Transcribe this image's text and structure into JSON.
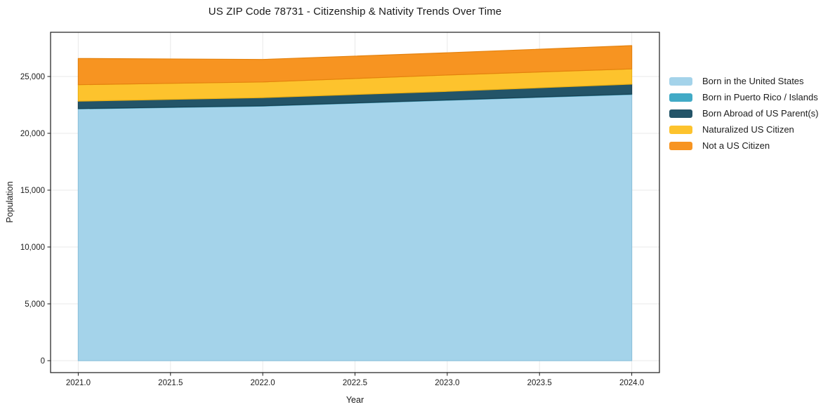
{
  "chart_data": {
    "type": "area",
    "stacked": true,
    "title": "US ZIP Code 78731 - Citizenship & Nativity Trends Over Time",
    "xlabel": "Year",
    "ylabel": "Population",
    "x": [
      2021,
      2022,
      2023,
      2024
    ],
    "series": [
      {
        "name": "Born in the United States",
        "color": "#a4d3ea",
        "edge_color": "#8ec2dc",
        "values": [
          22150,
          22390,
          22910,
          23420
        ]
      },
      {
        "name": "Born in Puerto Rico / Islands",
        "color": "#41aac6",
        "edge_color": "#3795b0",
        "values": [
          30,
          30,
          30,
          40
        ]
      },
      {
        "name": "Born Abroad of US Parent(s)",
        "color": "#235468",
        "edge_color": "#1a4253",
        "values": [
          650,
          720,
          750,
          870
        ]
      },
      {
        "name": "Naturalized US Citizen",
        "color": "#fdc32d",
        "edge_color": "#edb012",
        "values": [
          1450,
          1380,
          1440,
          1340
        ]
      },
      {
        "name": "Not a US Citizen",
        "color": "#f79421",
        "edge_color": "#e5820e",
        "values": [
          2310,
          1980,
          1960,
          2050
        ]
      }
    ],
    "xlim": [
      2020.85,
      2024.15
    ],
    "ylim": [
      -1050,
      28890
    ],
    "xticks": [
      2021.0,
      2021.5,
      2022.0,
      2022.5,
      2023.0,
      2023.5,
      2024.0
    ],
    "xtick_labels": [
      "2021.0",
      "2021.5",
      "2022.0",
      "2022.5",
      "2023.0",
      "2023.5",
      "2024.0"
    ],
    "yticks": [
      0,
      5000,
      10000,
      15000,
      20000,
      25000
    ],
    "ytick_labels": [
      "0",
      "5,000",
      "10,000",
      "15,000",
      "20,000",
      "25,000"
    ],
    "grid": true,
    "legend_position": "right"
  },
  "colors": {
    "background": "#ffffff",
    "grid": "#e9e9e9",
    "spine": "#1a1a1a",
    "tick_text": "#1c1c1c"
  }
}
